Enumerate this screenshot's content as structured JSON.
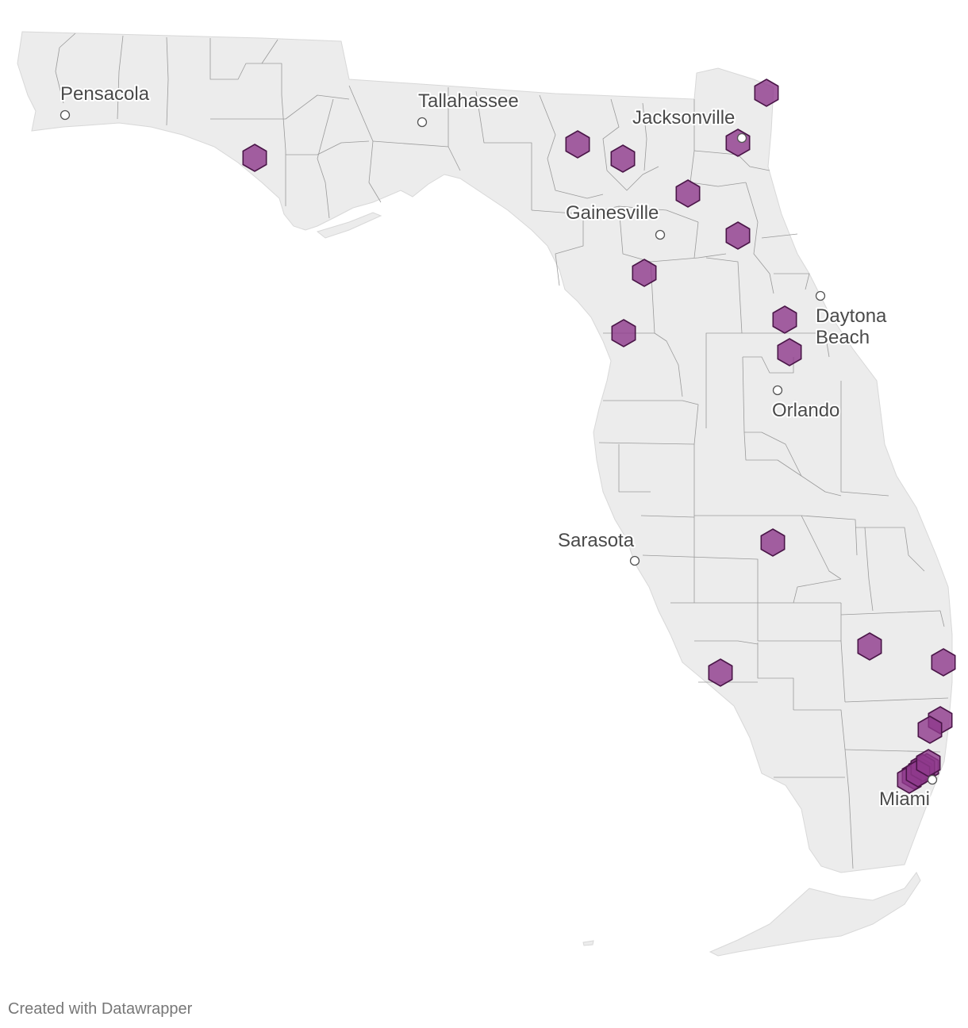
{
  "map": {
    "region": "Florida",
    "marker_color": "#8e3a8c",
    "marker_shape": "hexagon-icon",
    "land_color": "#ececec",
    "cities": [
      {
        "name": "Pensacola"
      },
      {
        "name": "Tallahassee"
      },
      {
        "name": "Jacksonville"
      },
      {
        "name": "Gainesville"
      },
      {
        "name": "Daytona",
        "name2": "Beach"
      },
      {
        "name": "Orlando"
      },
      {
        "name": "Sarasota"
      },
      {
        "name": "Miami"
      }
    ],
    "marker_count": 24
  },
  "footer": {
    "credit": "Created with Datawrapper"
  }
}
